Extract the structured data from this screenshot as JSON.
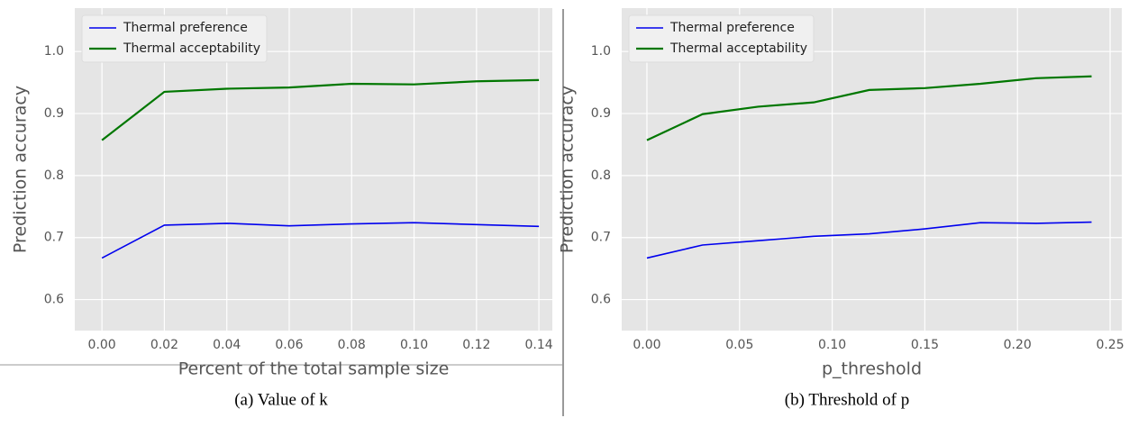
{
  "chart_data": [
    {
      "type": "line",
      "caption": "(a) Value of k",
      "xlabel": "Percent of the total sample size",
      "ylabel": "Prediction accuracy",
      "x": [
        0,
        0.02,
        0.04,
        0.06,
        0.08,
        0.1,
        0.12,
        0.14
      ],
      "series": [
        {
          "name": "Thermal preference",
          "color": "#0000ee",
          "values": [
            0.667,
            0.72,
            0.723,
            0.719,
            0.722,
            0.724,
            0.721,
            0.718
          ]
        },
        {
          "name": "Thermal acceptability",
          "color": "#007700",
          "values": [
            0.857,
            0.935,
            0.94,
            0.942,
            0.948,
            0.947,
            0.952,
            0.954
          ]
        }
      ],
      "xlim": [
        -0.0087,
        0.1443
      ],
      "ylim": [
        0.55,
        1.07
      ],
      "xticks": [
        {
          "value": 0,
          "label": "0.00"
        },
        {
          "value": 0.02,
          "label": "0.02"
        },
        {
          "value": 0.04,
          "label": "0.04"
        },
        {
          "value": 0.06,
          "label": "0.06"
        },
        {
          "value": 0.08,
          "label": "0.08"
        },
        {
          "value": 0.1,
          "label": "0.10"
        },
        {
          "value": 0.12,
          "label": "0.12"
        },
        {
          "value": 0.14,
          "label": "0.14"
        }
      ],
      "yticks": [
        0.6,
        0.7,
        0.8,
        0.9,
        {
          "value": 1,
          "label": "1.0"
        }
      ],
      "grid": true,
      "legend": "upper-left"
    },
    {
      "type": "line",
      "caption": "(b) Threshold of p",
      "xlabel": "p_threshold",
      "ylabel": "Prediction accuracy",
      "x": [
        0,
        0.03,
        0.06,
        0.09,
        0.12,
        0.15,
        0.18,
        0.21,
        0.24
      ],
      "series": [
        {
          "name": "Thermal preference",
          "color": "#0000ee",
          "values": [
            0.667,
            0.688,
            0.695,
            0.702,
            0.706,
            0.714,
            0.724,
            0.723,
            0.725
          ]
        },
        {
          "name": "Thermal acceptability",
          "color": "#007700",
          "values": [
            0.857,
            0.899,
            0.911,
            0.918,
            0.938,
            0.941,
            0.948,
            0.957,
            0.96
          ]
        }
      ],
      "xlim": [
        -0.0136,
        0.2563
      ],
      "ylim": [
        0.55,
        1.07
      ],
      "xticks": [
        {
          "value": 0,
          "label": "0.00"
        },
        {
          "value": 0.05,
          "label": "0.05"
        },
        {
          "value": 0.1,
          "label": "0.10"
        },
        {
          "value": 0.15,
          "label": "0.15"
        },
        {
          "value": 0.2,
          "label": "0.20"
        },
        {
          "value": 0.25,
          "label": "0.25"
        }
      ],
      "yticks": [
        0.6,
        0.7,
        0.8,
        0.9,
        {
          "value": 1,
          "label": "1.0"
        }
      ],
      "grid": true,
      "legend": "upper-left"
    }
  ]
}
